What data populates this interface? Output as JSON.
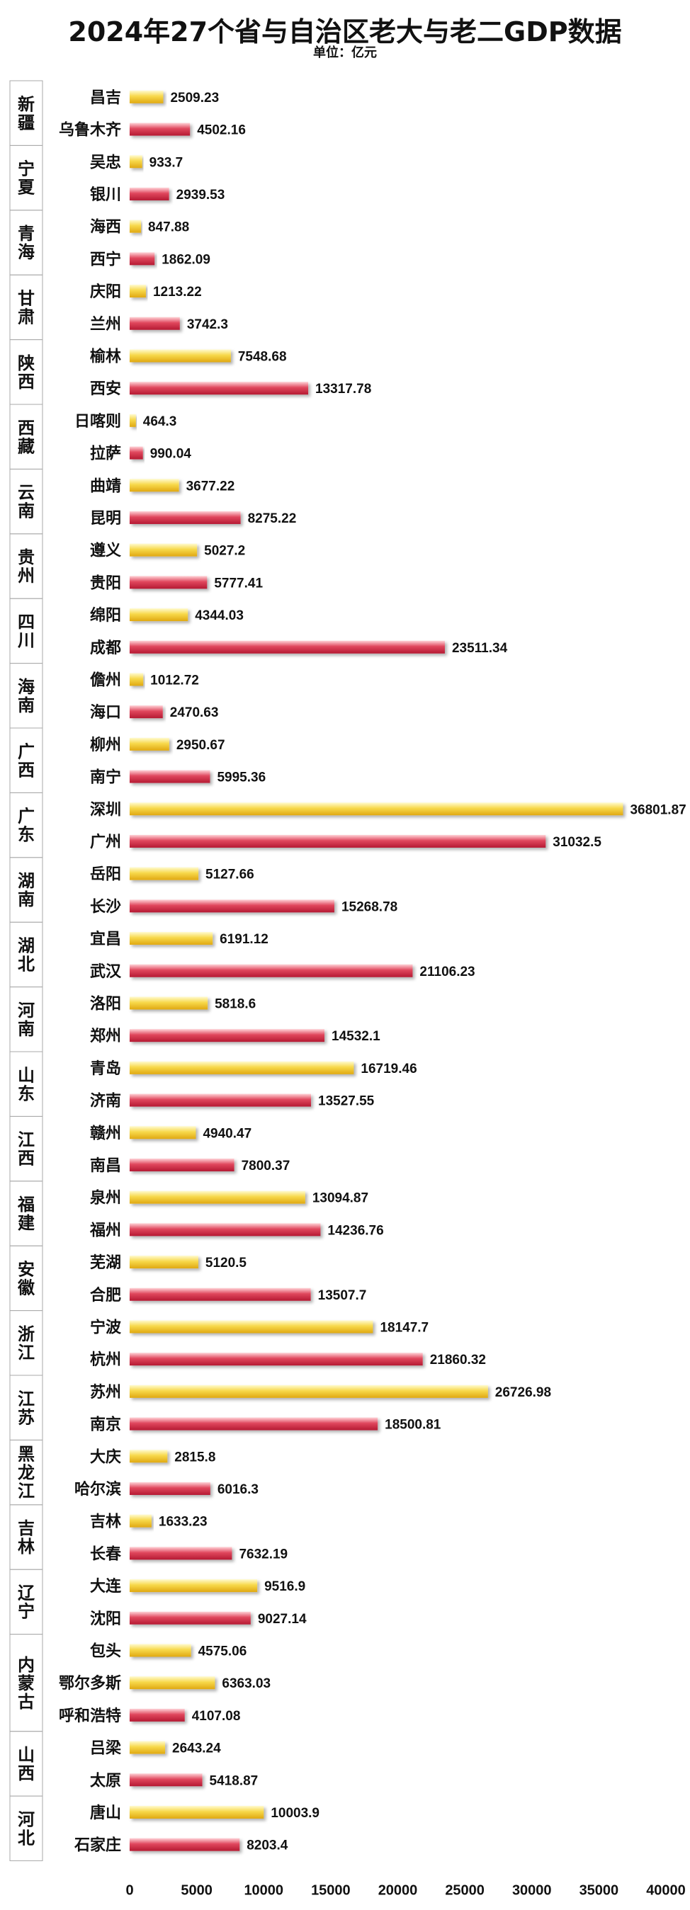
{
  "title": "2024年27个省与自治区老大与老二GDP数据",
  "subtitle": "单位：亿元",
  "chart_data": {
    "type": "bar",
    "orientation": "horizontal",
    "title": "2024年27个省与自治区老大与老二GDP数据",
    "subtitle": "单位：亿元",
    "xlim": [
      0,
      40000
    ],
    "xticks": [
      "0",
      "5000",
      "10000",
      "15000",
      "20000",
      "25000",
      "30000",
      "35000",
      "40000"
    ],
    "grid": false,
    "colors": {
      "second_city": "#f5cf3d",
      "first_city": "#dc3c55"
    },
    "groups": [
      {
        "province": "新疆",
        "cities": [
          {
            "name": "昌吉",
            "value": 2509.23,
            "rank": 2
          },
          {
            "name": "乌鲁木齐",
            "value": 4502.16,
            "rank": 1
          }
        ]
      },
      {
        "province": "宁夏",
        "cities": [
          {
            "name": "吴忠",
            "value": 933.7,
            "rank": 2
          },
          {
            "name": "银川",
            "value": 2939.53,
            "rank": 1
          }
        ]
      },
      {
        "province": "青海",
        "cities": [
          {
            "name": "海西",
            "value": 847.88,
            "rank": 2
          },
          {
            "name": "西宁",
            "value": 1862.09,
            "rank": 1
          }
        ]
      },
      {
        "province": "甘肃",
        "cities": [
          {
            "name": "庆阳",
            "value": 1213.22,
            "rank": 2
          },
          {
            "name": "兰州",
            "value": 3742.3,
            "rank": 1
          }
        ]
      },
      {
        "province": "陕西",
        "cities": [
          {
            "name": "榆林",
            "value": 7548.68,
            "rank": 2
          },
          {
            "name": "西安",
            "value": 13317.78,
            "rank": 1
          }
        ]
      },
      {
        "province": "西藏",
        "cities": [
          {
            "name": "日喀则",
            "value": 464.3,
            "rank": 2
          },
          {
            "name": "拉萨",
            "value": 990.04,
            "rank": 1
          }
        ]
      },
      {
        "province": "云南",
        "cities": [
          {
            "name": "曲靖",
            "value": 3677.22,
            "rank": 2
          },
          {
            "name": "昆明",
            "value": 8275.22,
            "rank": 1
          }
        ]
      },
      {
        "province": "贵州",
        "cities": [
          {
            "name": "遵义",
            "value": 5027.2,
            "rank": 2
          },
          {
            "name": "贵阳",
            "value": 5777.41,
            "rank": 1
          }
        ]
      },
      {
        "province": "四川",
        "cities": [
          {
            "name": "绵阳",
            "value": 4344.03,
            "rank": 2
          },
          {
            "name": "成都",
            "value": 23511.34,
            "rank": 1
          }
        ]
      },
      {
        "province": "海南",
        "cities": [
          {
            "name": "儋州",
            "value": 1012.72,
            "rank": 2
          },
          {
            "name": "海口",
            "value": 2470.63,
            "rank": 1
          }
        ]
      },
      {
        "province": "广西",
        "cities": [
          {
            "name": "柳州",
            "value": 2950.67,
            "rank": 2
          },
          {
            "name": "南宁",
            "value": 5995.36,
            "rank": 1
          }
        ]
      },
      {
        "province": "广东",
        "cities": [
          {
            "name": "深圳",
            "value": 36801.87,
            "rank": 2
          },
          {
            "name": "广州",
            "value": 31032.5,
            "rank": 1
          }
        ]
      },
      {
        "province": "湖南",
        "cities": [
          {
            "name": "岳阳",
            "value": 5127.66,
            "rank": 2
          },
          {
            "name": "长沙",
            "value": 15268.78,
            "rank": 1
          }
        ]
      },
      {
        "province": "湖北",
        "cities": [
          {
            "name": "宜昌",
            "value": 6191.12,
            "rank": 2
          },
          {
            "name": "武汉",
            "value": 21106.23,
            "rank": 1
          }
        ]
      },
      {
        "province": "河南",
        "cities": [
          {
            "name": "洛阳",
            "value": 5818.6,
            "rank": 2
          },
          {
            "name": "郑州",
            "value": 14532.1,
            "rank": 1
          }
        ]
      },
      {
        "province": "山东",
        "cities": [
          {
            "name": "青岛",
            "value": 16719.46,
            "rank": 2
          },
          {
            "name": "济南",
            "value": 13527.55,
            "rank": 1
          }
        ]
      },
      {
        "province": "江西",
        "cities": [
          {
            "name": "赣州",
            "value": 4940.47,
            "rank": 2
          },
          {
            "name": "南昌",
            "value": 7800.37,
            "rank": 1
          }
        ]
      },
      {
        "province": "福建",
        "cities": [
          {
            "name": "泉州",
            "value": 13094.87,
            "rank": 2
          },
          {
            "name": "福州",
            "value": 14236.76,
            "rank": 1
          }
        ]
      },
      {
        "province": "安徽",
        "cities": [
          {
            "name": "芜湖",
            "value": 5120.5,
            "rank": 2
          },
          {
            "name": "合肥",
            "value": 13507.7,
            "rank": 1
          }
        ]
      },
      {
        "province": "浙江",
        "cities": [
          {
            "name": "宁波",
            "value": 18147.7,
            "rank": 2
          },
          {
            "name": "杭州",
            "value": 21860.32,
            "rank": 1
          }
        ]
      },
      {
        "province": "江苏",
        "cities": [
          {
            "name": "苏州",
            "value": 26726.98,
            "rank": 2
          },
          {
            "name": "南京",
            "value": 18500.81,
            "rank": 1
          }
        ]
      },
      {
        "province": "黑龙江",
        "cities": [
          {
            "name": "大庆",
            "value": 2815.8,
            "rank": 2
          },
          {
            "name": "哈尔滨",
            "value": 6016.3,
            "rank": 1
          }
        ]
      },
      {
        "province": "吉林",
        "cities": [
          {
            "name": "吉林",
            "value": 1633.23,
            "rank": 2
          },
          {
            "name": "长春",
            "value": 7632.19,
            "rank": 1
          }
        ]
      },
      {
        "province": "辽宁",
        "cities": [
          {
            "name": "大连",
            "value": 9516.9,
            "rank": 2
          },
          {
            "name": "沈阳",
            "value": 9027.14,
            "rank": 1
          }
        ]
      },
      {
        "province": "内蒙古",
        "cities": [
          {
            "name": "包头",
            "value": 4575.06,
            "rank": 2
          },
          {
            "name": "鄂尔多斯",
            "value": 6363.03,
            "rank": 2
          },
          {
            "name": "呼和浩特",
            "value": 4107.08,
            "rank": 1
          }
        ]
      },
      {
        "province": "山西",
        "cities": [
          {
            "name": "吕梁",
            "value": 2643.24,
            "rank": 2
          },
          {
            "name": "太原",
            "value": 5418.87,
            "rank": 1
          }
        ]
      },
      {
        "province": "河北",
        "cities": [
          {
            "name": "唐山",
            "value": 10003.9,
            "rank": 2
          },
          {
            "name": "石家庄",
            "value": 8203.4,
            "rank": 1
          }
        ]
      }
    ]
  }
}
